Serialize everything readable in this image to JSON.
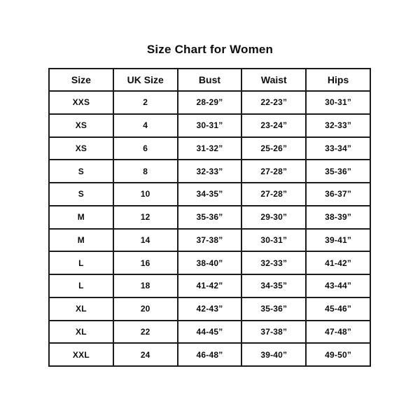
{
  "page": {
    "title": "Size Chart for Women"
  },
  "table": {
    "headers": [
      "Size",
      "UK Size",
      "Bust",
      "Waist",
      "Hips"
    ],
    "rows": [
      [
        "XXS",
        "2",
        "28-29”",
        "22-23”",
        "30-31”"
      ],
      [
        "XS",
        "4",
        "30-31”",
        "23-24”",
        "32-33”"
      ],
      [
        "XS",
        "6",
        "31-32”",
        "25-26”",
        "33-34”"
      ],
      [
        "S",
        "8",
        "32-33”",
        "27-28”",
        "35-36”"
      ],
      [
        "S",
        "10",
        "34-35”",
        "27-28”",
        "36-37”"
      ],
      [
        "M",
        "12",
        "35-36”",
        "29-30”",
        "38-39”"
      ],
      [
        "M",
        "14",
        "37-38”",
        "30-31”",
        "39-41”"
      ],
      [
        "L",
        "16",
        "38-40”",
        "32-33”",
        "41-42”"
      ],
      [
        "L",
        "18",
        "41-42”",
        "34-35”",
        "43-44”"
      ],
      [
        "XL",
        "20",
        "42-43”",
        "35-36”",
        "45-46”"
      ],
      [
        "XL",
        "22",
        "44-45”",
        "37-38”",
        "47-48”"
      ],
      [
        "XXL",
        "24",
        "46-48”",
        "39-40”",
        "49-50”"
      ]
    ]
  }
}
